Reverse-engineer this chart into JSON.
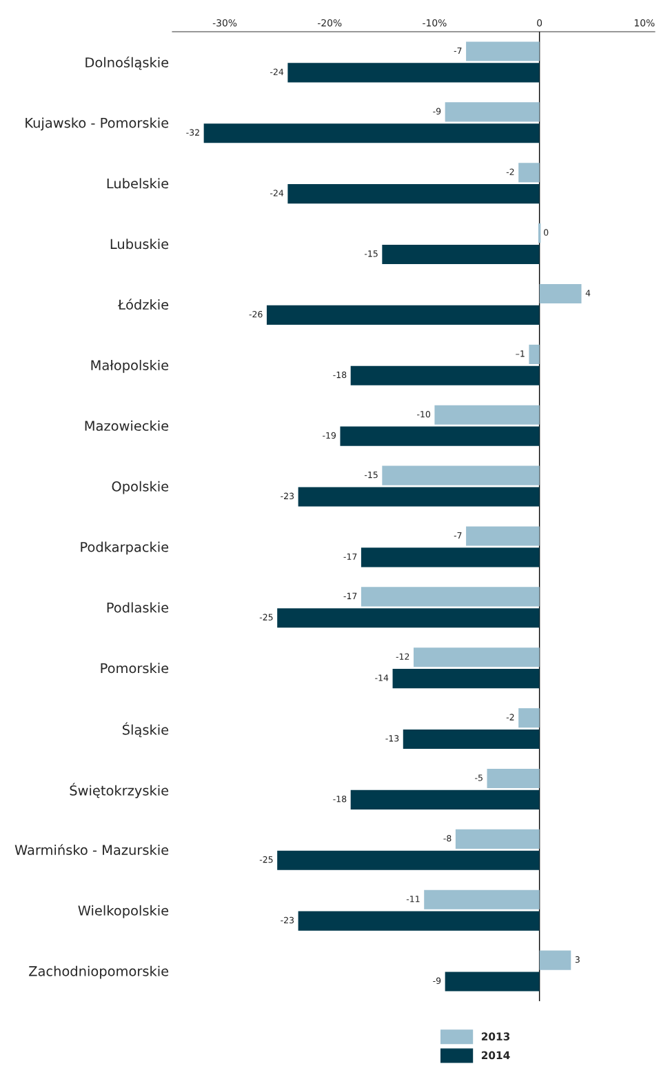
{
  "chart_data": {
    "type": "bar",
    "orientation": "horizontal",
    "categories": [
      "Dolnośląskie",
      "Kujawsko - Pomorskie",
      "Lubelskie",
      "Lubuskie",
      "Łódzkie",
      "Małopolskie",
      "Mazowieckie",
      "Opolskie",
      "Podkarpackie",
      "Podlaskie",
      "Pomorskie",
      "Śląskie",
      "Świętokrzyskie",
      "Warmińsko - Mazurskie",
      "Wielkopolskie",
      "Zachodniopomorskie"
    ],
    "series": [
      {
        "name": "2013",
        "color": "#9bbfd0",
        "values": [
          -7,
          -9,
          -2,
          0,
          4,
          -1,
          -10,
          -15,
          -7,
          -17,
          -12,
          -2,
          -5,
          -8,
          -11,
          3
        ],
        "value_labels": [
          "-7",
          "-9",
          "-2",
          "0",
          "4",
          "–1",
          "-10",
          "-15",
          "-7",
          "-17",
          "-12",
          "-2",
          "-5",
          "-8",
          "-11",
          "3"
        ]
      },
      {
        "name": "2014",
        "color": "#003a4d",
        "values": [
          -24,
          -32,
          -24,
          -15,
          -26,
          -18,
          -19,
          -23,
          -17,
          -25,
          -14,
          -13,
          -18,
          -25,
          -23,
          -9
        ],
        "value_labels": [
          "-24",
          "-32",
          "-24",
          "-15",
          "-26",
          "-18",
          "-19",
          "-23",
          "-17",
          "-25",
          "-14",
          "-13",
          "-18",
          "-25",
          "-23",
          "-9"
        ]
      }
    ],
    "xlim": [
      -35,
      11
    ],
    "xticks": [
      {
        "value": -30,
        "label": "-30%"
      },
      {
        "value": -20,
        "label": "-20%"
      },
      {
        "value": -10,
        "label": "-10%"
      },
      0,
      {
        "value": 10,
        "label": "10%"
      }
    ],
    "ref_lines": [
      {
        "axis": "x",
        "value": 0,
        "color": "#000000"
      }
    ],
    "grid": false,
    "legend": "bottom right"
  }
}
